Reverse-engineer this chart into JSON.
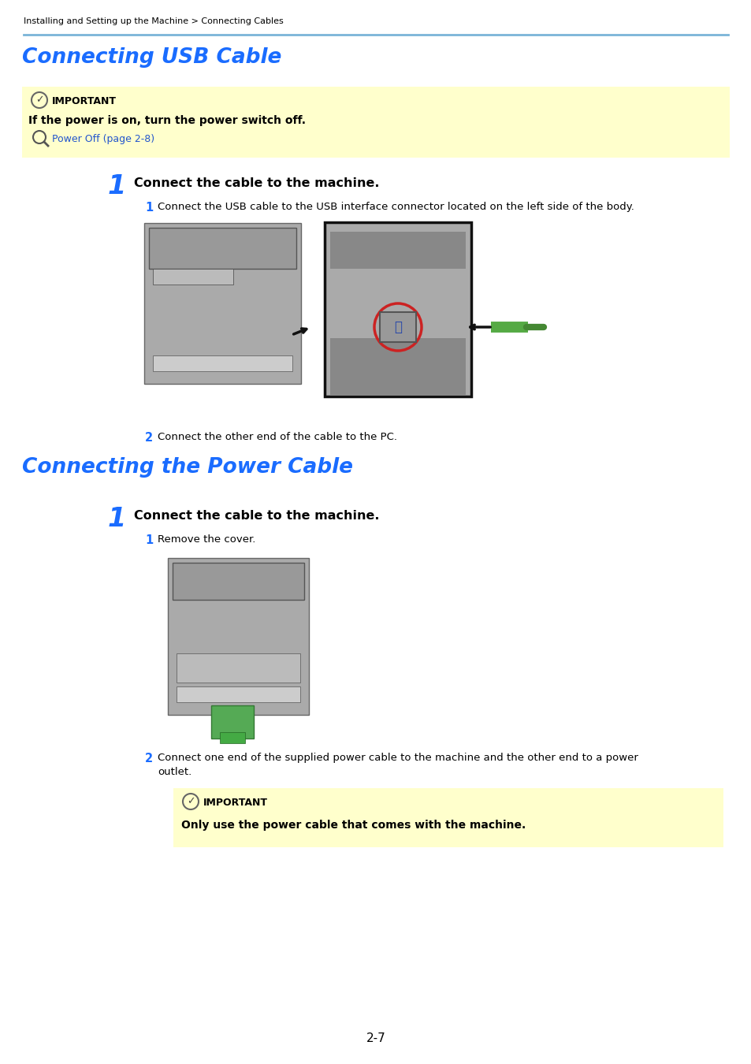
{
  "page_bg": "#ffffff",
  "breadcrumb": "Installing and Setting up the Machine > Connecting Cables",
  "breadcrumb_color": "#000000",
  "breadcrumb_fontsize": 8.0,
  "separator_color": "#7ab4d8",
  "title1": "Connecting USB Cable",
  "title2": "Connecting the Power Cable",
  "title_color": "#1a6cff",
  "title_fontsize": 19,
  "important_bg": "#ffffcc",
  "important_label": "IMPORTANT",
  "important_text1": "If the power is on, turn the power switch off.",
  "important_link": "Power Off (page 2-8)",
  "important_link_color": "#2255cc",
  "step_number_color": "#1a6cff",
  "step_header_color": "#000000",
  "body_text_color": "#000000",
  "important2_label": "IMPORTANT",
  "important2_text": "Only use the power cable that comes with the machine.",
  "page_number": "2-7",
  "usb_sub1": "Connect the USB cable to the USB interface connector located on the left side of the body.",
  "usb_sub2": "Connect the other end of the cable to the PC.",
  "power_sub1": "Remove the cover.",
  "power_sub2a": "Connect one end of the supplied power cable to the machine and the other end to a power",
  "power_sub2b": "outlet.",
  "step1_header": "Connect the cable to the machine.",
  "step2_header": "Connect the cable to the machine."
}
